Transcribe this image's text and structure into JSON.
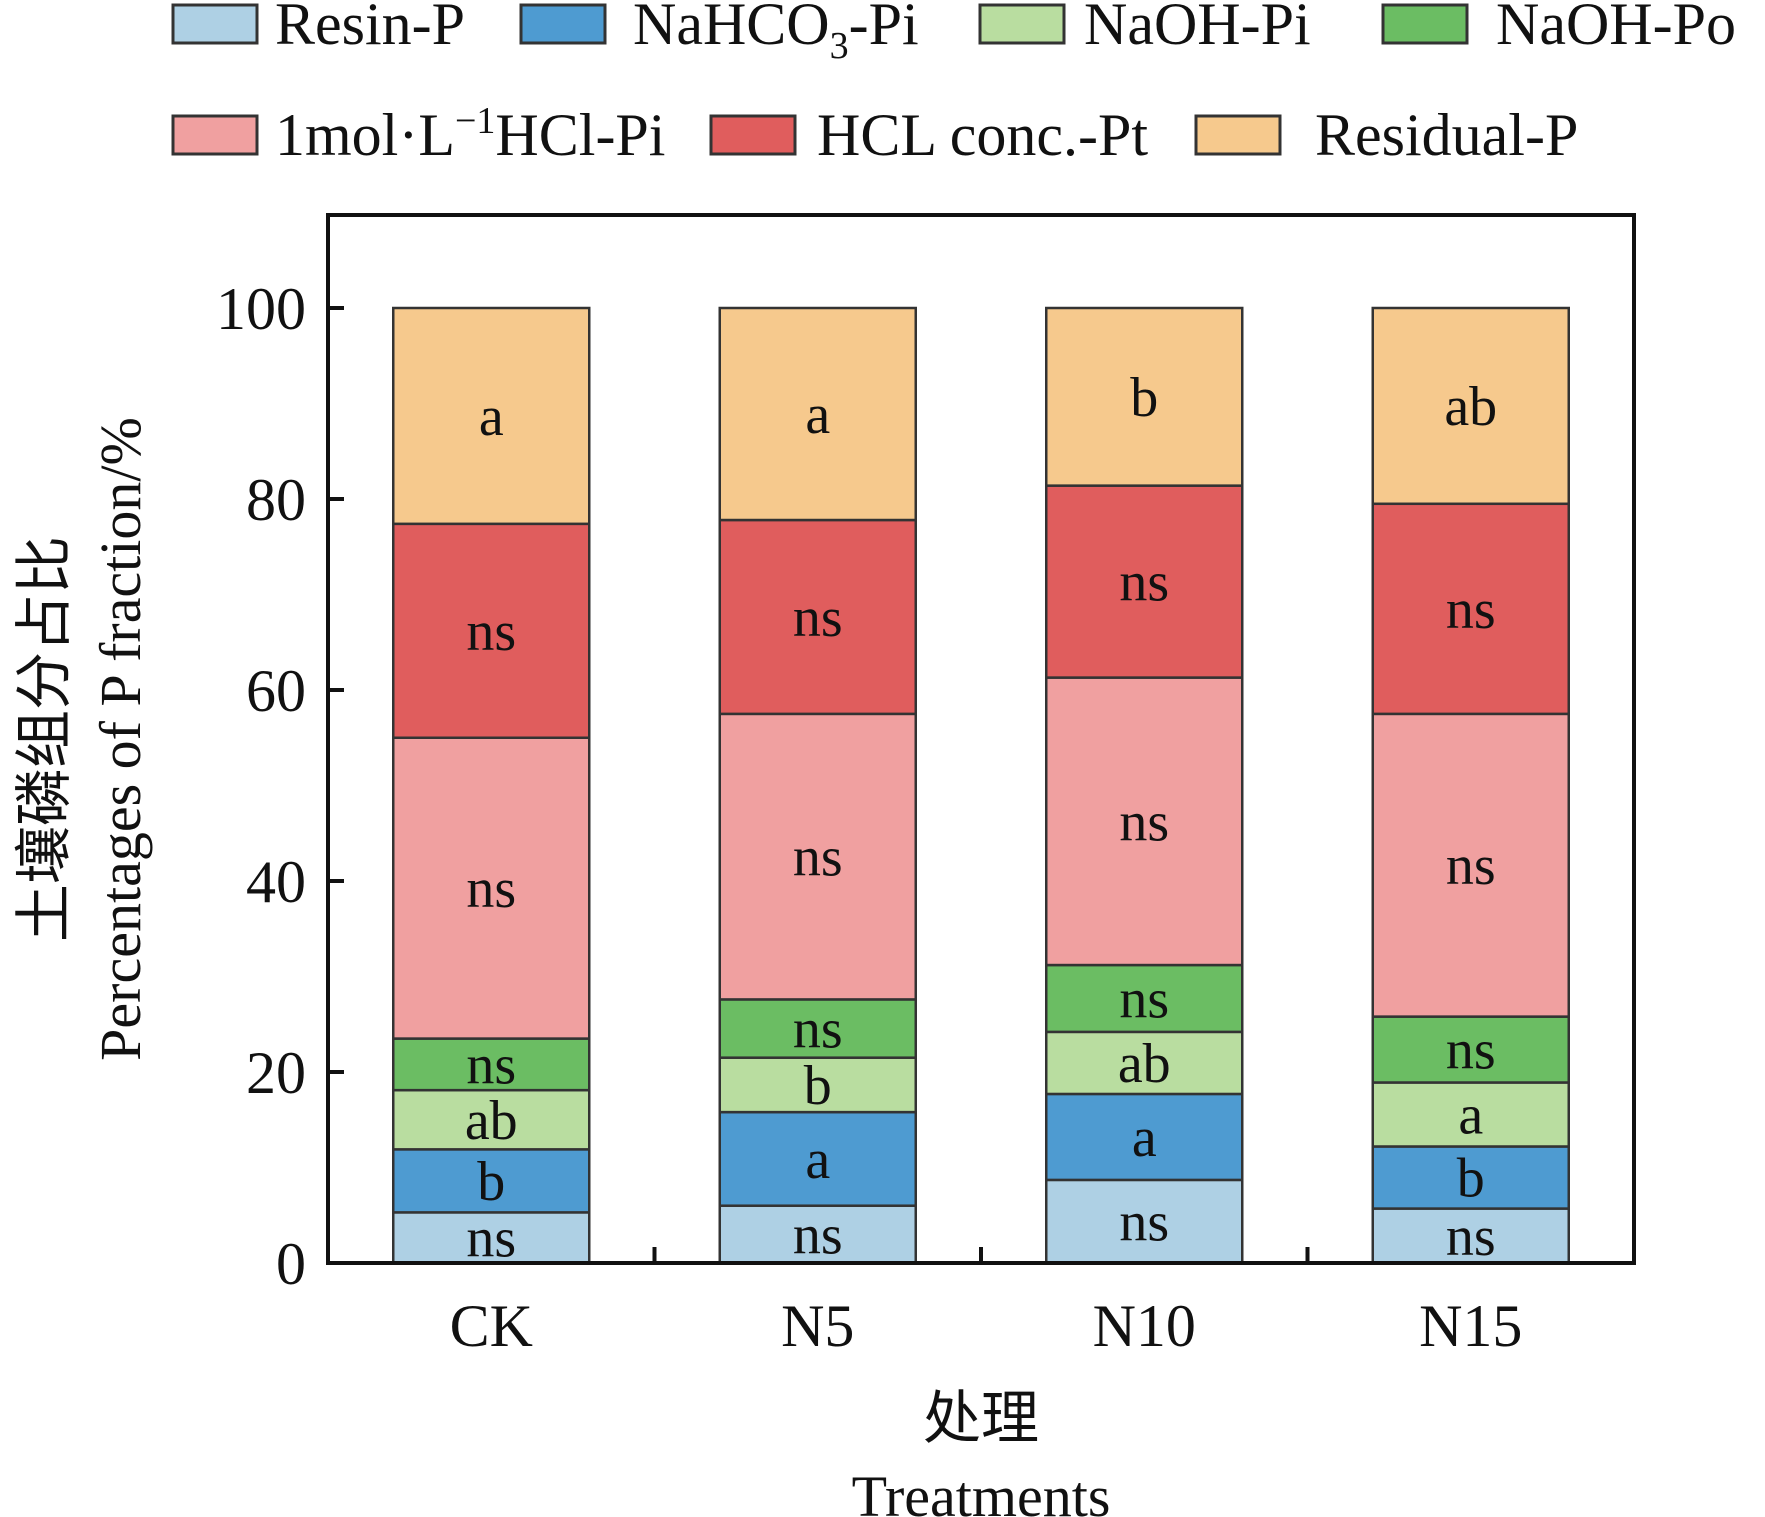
{
  "chart_data": {
    "type": "bar",
    "stacked": true,
    "title": "",
    "categories": [
      "CK",
      "N5",
      "N10",
      "N15"
    ],
    "xlabel_cn": "处理",
    "xlabel_en": "Treatments",
    "ylabel_cn": "土壤磷组分占比",
    "ylabel_en": "Percentages of P fraction/%",
    "ylim": [
      0,
      110
    ],
    "yticks": [
      0,
      20,
      40,
      60,
      80,
      100
    ],
    "grid": false,
    "legend_position": "top",
    "series": [
      {
        "name": "Resin-P",
        "legend_main": "Resin-P",
        "legend_sub": "",
        "legend_tail": "",
        "color": "#aed0e4",
        "values": [
          5.3,
          6.0,
          8.7,
          5.7
        ],
        "labels": [
          "ns",
          "ns",
          "ns",
          "ns"
        ]
      },
      {
        "name": "NaHCO3-Pi",
        "legend_main": "NaHCO",
        "legend_sub": "3",
        "legend_tail": "-Pi",
        "color": "#4e9bd1",
        "values": [
          6.6,
          9.8,
          9.0,
          6.5
        ],
        "labels": [
          "b",
          "a",
          "a",
          "b"
        ]
      },
      {
        "name": "NaOH-Pi",
        "legend_main": "NaOH-Pi",
        "legend_sub": "",
        "legend_tail": "",
        "color": "#b9dda0",
        "values": [
          6.2,
          5.7,
          6.5,
          6.7
        ],
        "labels": [
          "ab",
          "b",
          "ab",
          "a"
        ]
      },
      {
        "name": "NaOH-Po",
        "legend_main": "NaOH-Po",
        "legend_sub": "",
        "legend_tail": "",
        "color": "#6bbd63",
        "values": [
          5.4,
          6.1,
          7.0,
          6.9
        ],
        "labels": [
          "ns",
          "ns",
          "ns",
          "ns"
        ]
      },
      {
        "name": "1mol·L-1HCl-Pi",
        "legend_main": "1mol·L",
        "legend_sup": "−1",
        "legend_tail": "HCl-Pi",
        "color": "#f0a0a0",
        "values": [
          31.5,
          29.9,
          30.1,
          31.7
        ],
        "labels": [
          "ns",
          "ns",
          "ns",
          "ns"
        ]
      },
      {
        "name": "HCL conc.-Pt",
        "legend_main": "HCL conc.-Pt",
        "legend_sub": "",
        "legend_tail": "",
        "color": "#e05d5d",
        "values": [
          22.4,
          20.3,
          20.1,
          22.0
        ],
        "labels": [
          "ns",
          "ns",
          "ns",
          "ns"
        ]
      },
      {
        "name": "Residual-P",
        "legend_main": "Residual-P",
        "legend_sub": "",
        "legend_tail": "",
        "color": "#f6c98d",
        "values": [
          22.6,
          22.2,
          18.6,
          20.5
        ],
        "labels": [
          "a",
          "a",
          "b",
          "ab"
        ]
      }
    ]
  }
}
